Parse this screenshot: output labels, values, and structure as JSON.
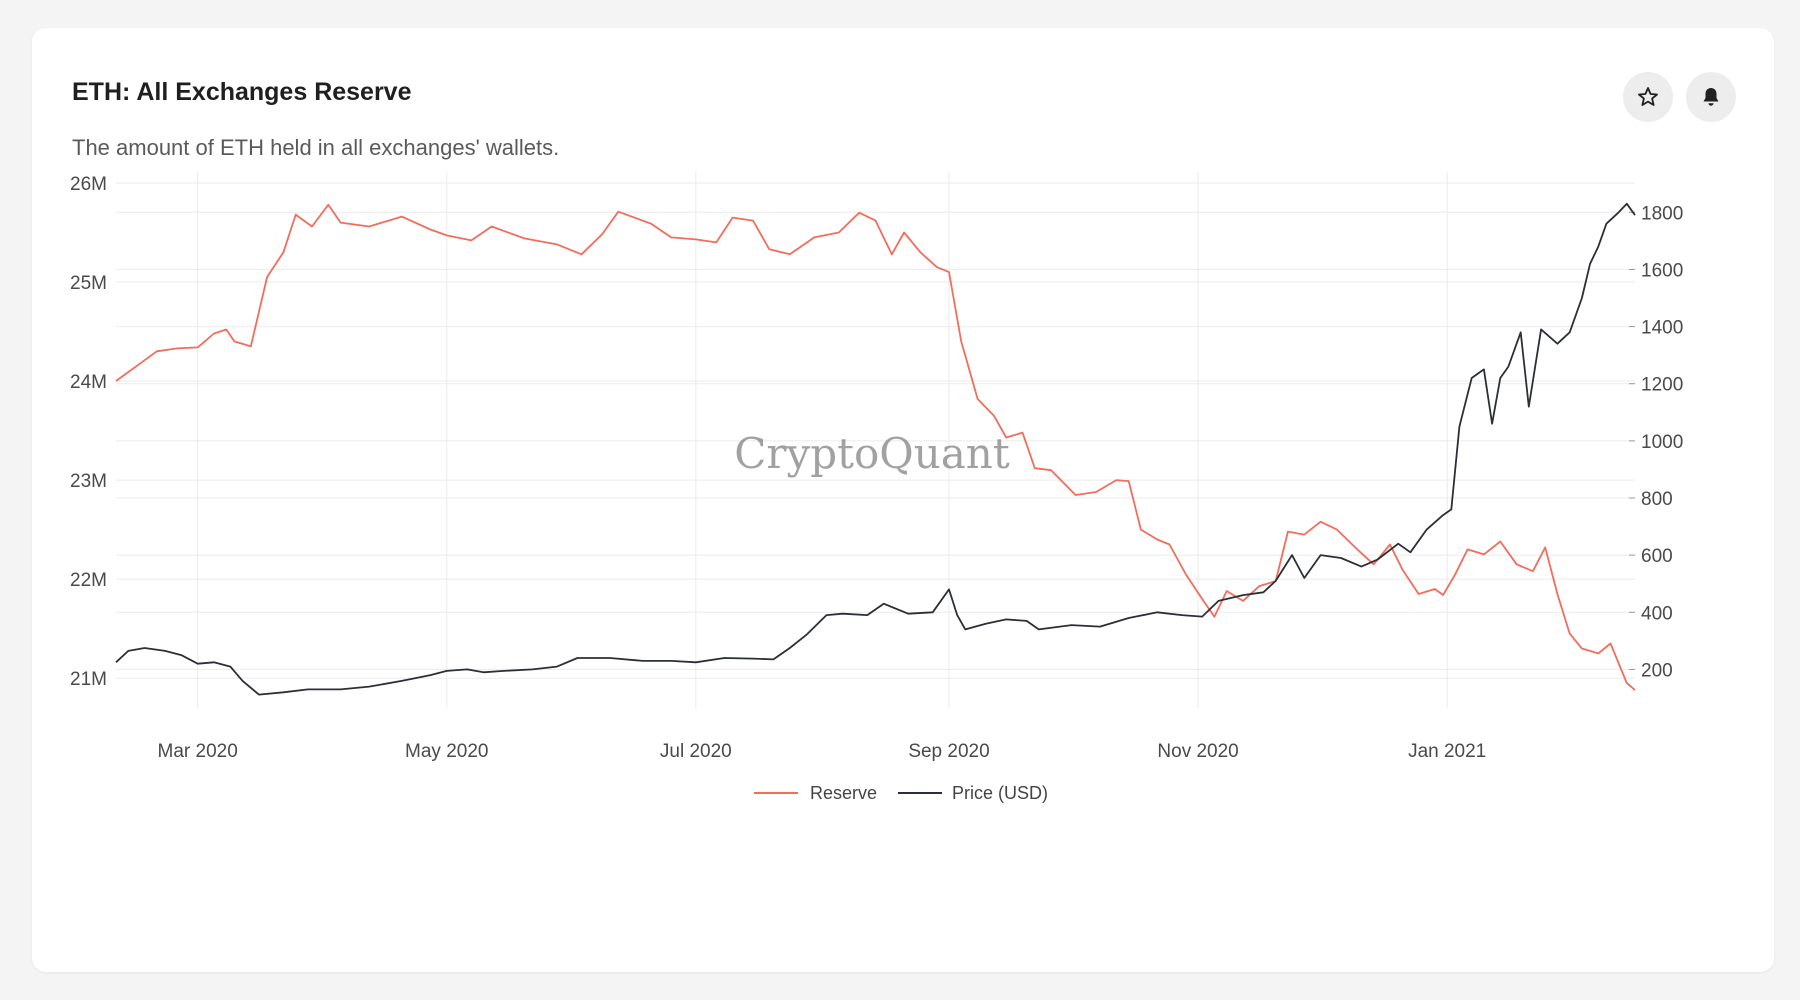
{
  "card": {
    "title": "ETH: All Exchanges Reserve",
    "subtitle": "The amount of ETH held in all exchanges' wallets.",
    "favorite_icon": "star-icon",
    "alert_icon": "bell-icon"
  },
  "watermark": "CryptoQuant",
  "colors": {
    "reserve": "#f26d5b",
    "price": "#2b2f36",
    "grid": "#ebebeb",
    "tick_text": "#4a4a4a"
  },
  "chart_data": {
    "type": "line",
    "title": "ETH: All Exchanges Reserve",
    "x_range": [
      "2020-02-10",
      "2021-02-16"
    ],
    "x_ticks": [
      "Mar 2020",
      "May 2020",
      "Jul 2020",
      "Sep 2020",
      "Nov 2020",
      "Jan 2021"
    ],
    "x_tick_dates": [
      "2020-03-01",
      "2020-05-01",
      "2020-07-01",
      "2020-09-01",
      "2020-11-01",
      "2021-01-01"
    ],
    "y_left": {
      "range": [
        20800000,
        26050000
      ],
      "ticks": [
        21000000,
        22000000,
        23000000,
        24000000,
        25000000,
        26000000
      ],
      "tick_labels": [
        "21M",
        "22M",
        "23M",
        "24M",
        "25M",
        "26M"
      ]
    },
    "y_right": {
      "range": [
        100,
        1920
      ],
      "ticks": [
        200,
        400,
        600,
        800,
        1000,
        1200,
        1400,
        1600,
        1800
      ],
      "tick_labels": [
        "200",
        "400",
        "600",
        "800",
        "1000",
        "1200",
        "1400",
        "1600",
        "1800"
      ]
    },
    "grid": true,
    "legend_position": "bottom-center",
    "series": [
      {
        "name": "Reserve",
        "axis": "left",
        "points": [
          [
            "2020-02-10",
            24000000
          ],
          [
            "2020-02-15",
            24150000
          ],
          [
            "2020-02-20",
            24300000
          ],
          [
            "2020-02-25",
            24330000
          ],
          [
            "2020-03-01",
            24340000
          ],
          [
            "2020-03-05",
            24480000
          ],
          [
            "2020-03-08",
            24520000
          ],
          [
            "2020-03-10",
            24400000
          ],
          [
            "2020-03-14",
            24350000
          ],
          [
            "2020-03-18",
            25050000
          ],
          [
            "2020-03-22",
            25300000
          ],
          [
            "2020-03-25",
            25680000
          ],
          [
            "2020-03-29",
            25560000
          ],
          [
            "2020-04-02",
            25780000
          ],
          [
            "2020-04-05",
            25600000
          ],
          [
            "2020-04-12",
            25560000
          ],
          [
            "2020-04-20",
            25660000
          ],
          [
            "2020-04-27",
            25530000
          ],
          [
            "2020-05-01",
            25470000
          ],
          [
            "2020-05-07",
            25420000
          ],
          [
            "2020-05-12",
            25560000
          ],
          [
            "2020-05-20",
            25440000
          ],
          [
            "2020-05-28",
            25380000
          ],
          [
            "2020-06-03",
            25280000
          ],
          [
            "2020-06-08",
            25480000
          ],
          [
            "2020-06-12",
            25710000
          ],
          [
            "2020-06-20",
            25590000
          ],
          [
            "2020-06-25",
            25450000
          ],
          [
            "2020-07-01",
            25430000
          ],
          [
            "2020-07-06",
            25400000
          ],
          [
            "2020-07-10",
            25650000
          ],
          [
            "2020-07-15",
            25620000
          ],
          [
            "2020-07-19",
            25330000
          ],
          [
            "2020-07-24",
            25280000
          ],
          [
            "2020-07-30",
            25450000
          ],
          [
            "2020-08-05",
            25500000
          ],
          [
            "2020-08-10",
            25700000
          ],
          [
            "2020-08-14",
            25620000
          ],
          [
            "2020-08-18",
            25280000
          ],
          [
            "2020-08-21",
            25500000
          ],
          [
            "2020-08-25",
            25300000
          ],
          [
            "2020-08-29",
            25150000
          ],
          [
            "2020-09-01",
            25100000
          ],
          [
            "2020-09-04",
            24400000
          ],
          [
            "2020-09-08",
            23820000
          ],
          [
            "2020-09-12",
            23650000
          ],
          [
            "2020-09-15",
            23430000
          ],
          [
            "2020-09-19",
            23480000
          ],
          [
            "2020-09-22",
            23120000
          ],
          [
            "2020-09-26",
            23100000
          ],
          [
            "2020-10-02",
            22850000
          ],
          [
            "2020-10-07",
            22880000
          ],
          [
            "2020-10-12",
            23000000
          ],
          [
            "2020-10-15",
            22990000
          ],
          [
            "2020-10-18",
            22500000
          ],
          [
            "2020-10-22",
            22400000
          ],
          [
            "2020-10-25",
            22350000
          ],
          [
            "2020-10-29",
            22050000
          ],
          [
            "2020-11-02",
            21800000
          ],
          [
            "2020-11-05",
            21620000
          ],
          [
            "2020-11-08",
            21880000
          ],
          [
            "2020-11-12",
            21780000
          ],
          [
            "2020-11-16",
            21930000
          ],
          [
            "2020-11-20",
            21980000
          ],
          [
            "2020-11-23",
            22480000
          ],
          [
            "2020-11-27",
            22450000
          ],
          [
            "2020-12-01",
            22580000
          ],
          [
            "2020-12-05",
            22500000
          ],
          [
            "2020-12-10",
            22300000
          ],
          [
            "2020-12-14",
            22150000
          ],
          [
            "2020-12-18",
            22350000
          ],
          [
            "2020-12-21",
            22100000
          ],
          [
            "2020-12-25",
            21850000
          ],
          [
            "2020-12-29",
            21900000
          ],
          [
            "2020-12-31",
            21840000
          ],
          [
            "2021-01-03",
            22050000
          ],
          [
            "2021-01-06",
            22300000
          ],
          [
            "2021-01-10",
            22250000
          ],
          [
            "2021-01-14",
            22380000
          ],
          [
            "2021-01-18",
            22150000
          ],
          [
            "2021-01-22",
            22080000
          ],
          [
            "2021-01-25",
            22320000
          ],
          [
            "2021-01-28",
            21850000
          ],
          [
            "2021-01-31",
            21450000
          ],
          [
            "2021-02-03",
            21300000
          ],
          [
            "2021-02-07",
            21250000
          ],
          [
            "2021-02-10",
            21350000
          ],
          [
            "2021-02-14",
            20950000
          ],
          [
            "2021-02-16",
            20880000
          ]
        ]
      },
      {
        "name": "Price (USD)",
        "axis": "right",
        "points": [
          [
            "2020-02-10",
            225
          ],
          [
            "2020-02-13",
            265
          ],
          [
            "2020-02-17",
            275
          ],
          [
            "2020-02-22",
            265
          ],
          [
            "2020-02-26",
            250
          ],
          [
            "2020-03-01",
            220
          ],
          [
            "2020-03-05",
            225
          ],
          [
            "2020-03-09",
            210
          ],
          [
            "2020-03-12",
            160
          ],
          [
            "2020-03-16",
            112
          ],
          [
            "2020-03-22",
            120
          ],
          [
            "2020-03-28",
            130
          ],
          [
            "2020-04-05",
            130
          ],
          [
            "2020-04-12",
            140
          ],
          [
            "2020-04-20",
            160
          ],
          [
            "2020-04-27",
            180
          ],
          [
            "2020-05-01",
            195
          ],
          [
            "2020-05-06",
            200
          ],
          [
            "2020-05-10",
            190
          ],
          [
            "2020-05-15",
            195
          ],
          [
            "2020-05-22",
            200
          ],
          [
            "2020-05-28",
            210
          ],
          [
            "2020-06-02",
            240
          ],
          [
            "2020-06-10",
            240
          ],
          [
            "2020-06-18",
            230
          ],
          [
            "2020-06-25",
            230
          ],
          [
            "2020-07-01",
            225
          ],
          [
            "2020-07-08",
            240
          ],
          [
            "2020-07-15",
            238
          ],
          [
            "2020-07-20",
            235
          ],
          [
            "2020-07-24",
            275
          ],
          [
            "2020-07-28",
            320
          ],
          [
            "2020-08-02",
            390
          ],
          [
            "2020-08-06",
            395
          ],
          [
            "2020-08-12",
            390
          ],
          [
            "2020-08-16",
            430
          ],
          [
            "2020-08-22",
            395
          ],
          [
            "2020-08-28",
            400
          ],
          [
            "2020-09-01",
            480
          ],
          [
            "2020-09-03",
            390
          ],
          [
            "2020-09-05",
            340
          ],
          [
            "2020-09-10",
            360
          ],
          [
            "2020-09-15",
            375
          ],
          [
            "2020-09-20",
            370
          ],
          [
            "2020-09-23",
            340
          ],
          [
            "2020-10-01",
            355
          ],
          [
            "2020-10-08",
            350
          ],
          [
            "2020-10-15",
            380
          ],
          [
            "2020-10-22",
            400
          ],
          [
            "2020-10-28",
            390
          ],
          [
            "2020-11-02",
            385
          ],
          [
            "2020-11-06",
            440
          ],
          [
            "2020-11-12",
            460
          ],
          [
            "2020-11-17",
            470
          ],
          [
            "2020-11-20",
            510
          ],
          [
            "2020-11-24",
            600
          ],
          [
            "2020-11-27",
            520
          ],
          [
            "2020-12-01",
            600
          ],
          [
            "2020-12-06",
            590
          ],
          [
            "2020-12-11",
            560
          ],
          [
            "2020-12-15",
            585
          ],
          [
            "2020-12-20",
            640
          ],
          [
            "2020-12-23",
            610
          ],
          [
            "2020-12-27",
            690
          ],
          [
            "2020-12-31",
            740
          ],
          [
            "2021-01-02",
            760
          ],
          [
            "2021-01-04",
            1050
          ],
          [
            "2021-01-07",
            1220
          ],
          [
            "2021-01-10",
            1250
          ],
          [
            "2021-01-12",
            1060
          ],
          [
            "2021-01-14",
            1220
          ],
          [
            "2021-01-16",
            1260
          ],
          [
            "2021-01-19",
            1380
          ],
          [
            "2021-01-21",
            1120
          ],
          [
            "2021-01-24",
            1390
          ],
          [
            "2021-01-28",
            1340
          ],
          [
            "2021-01-31",
            1380
          ],
          [
            "2021-02-03",
            1500
          ],
          [
            "2021-02-05",
            1620
          ],
          [
            "2021-02-07",
            1680
          ],
          [
            "2021-02-09",
            1760
          ],
          [
            "2021-02-12",
            1800
          ],
          [
            "2021-02-14",
            1830
          ],
          [
            "2021-02-16",
            1790
          ]
        ]
      }
    ]
  }
}
